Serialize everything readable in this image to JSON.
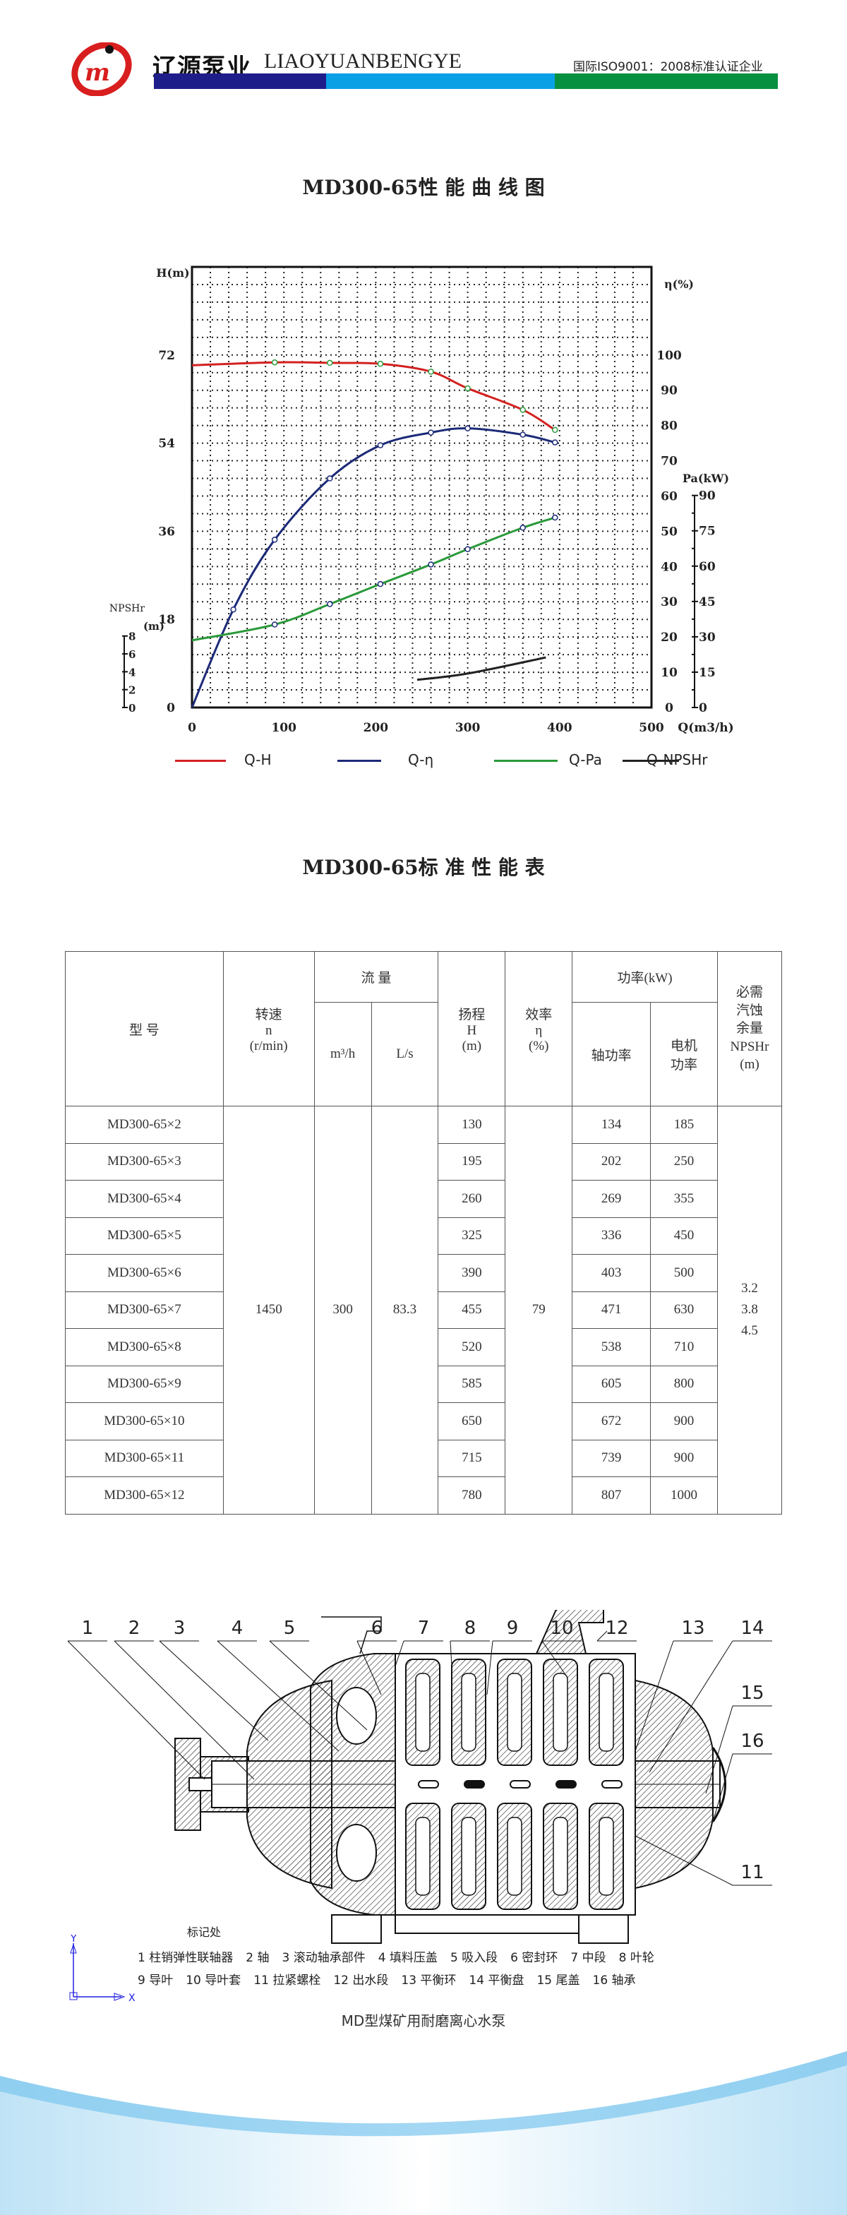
{
  "header": {
    "company_cn": "辽源泵业",
    "company_en": "LIAOYUANBENGYE",
    "certification": "国际ISO9001：2008标准认证企业",
    "logo_text": "JM",
    "bar_colors": [
      "#1e1e8a",
      "#0aa0e6",
      "#079040"
    ]
  },
  "chart_title": "MD300-65性 能 曲 线 图",
  "chart_data": {
    "type": "line",
    "grid": true,
    "x": {
      "label": "Q(m3/h)",
      "range": [
        0,
        500
      ],
      "ticks": [
        "0",
        "100",
        "200",
        "300",
        "400",
        "500"
      ]
    },
    "axes": {
      "H": {
        "label": "H(m)",
        "range": [
          0,
          90
        ],
        "ticks": [
          "0",
          "18",
          "36",
          "54",
          "72"
        ],
        "tick_values": [
          0,
          18,
          36,
          54,
          72
        ]
      },
      "eta": {
        "label": "η(%)",
        "range": [
          0,
          125
        ],
        "ticks": [
          "0",
          "10",
          "20",
          "30",
          "40",
          "50",
          "60",
          "70",
          "80",
          "90",
          "100"
        ],
        "tick_values": [
          0,
          10,
          20,
          30,
          40,
          50,
          60,
          70,
          80,
          90,
          100
        ]
      },
      "Pa": {
        "label": "Pa(kW)",
        "range": [
          0,
          187
        ],
        "ticks": [
          "0",
          "15",
          "30",
          "45",
          "60",
          "75",
          "90"
        ],
        "tick_values": [
          0,
          15,
          30,
          45,
          60,
          75,
          90
        ]
      },
      "NPSHr": {
        "label": "NPSHr",
        "unit": "(m)",
        "range": [
          0,
          49.3
        ],
        "ticks": [
          "0",
          "2",
          "4",
          "6",
          "8"
        ],
        "tick_values": [
          0,
          2,
          4,
          6,
          8
        ]
      }
    },
    "series": [
      {
        "name": "Q-H",
        "axis": "H",
        "color": "#d42020",
        "markers": true,
        "points": [
          [
            0,
            69.9
          ],
          [
            90,
            70.5
          ],
          [
            150,
            70.4
          ],
          [
            205,
            70.2
          ],
          [
            260,
            68.6
          ],
          [
            300,
            65.2
          ],
          [
            360,
            60.8
          ],
          [
            395,
            56.7
          ]
        ]
      },
      {
        "name": "Q-η",
        "axis": "eta",
        "color": "#1c2a78",
        "markers": true,
        "points": [
          [
            0,
            0
          ],
          [
            45,
            27.8
          ],
          [
            90,
            47.6
          ],
          [
            150,
            65
          ],
          [
            205,
            74.4
          ],
          [
            260,
            78
          ],
          [
            300,
            79.2
          ],
          [
            360,
            77.4
          ],
          [
            395,
            75.2
          ]
        ]
      },
      {
        "name": "Q-Pa",
        "axis": "Pa",
        "color": "#2a9a3a",
        "markers": true,
        "points": [
          [
            0,
            28.5
          ],
          [
            90,
            35.2
          ],
          [
            150,
            43.9
          ],
          [
            205,
            52.4
          ],
          [
            260,
            60.7
          ],
          [
            300,
            67.2
          ],
          [
            360,
            76.3
          ],
          [
            395,
            80.6
          ]
        ]
      },
      {
        "name": "Q-NPSHr",
        "axis": "NPSHr",
        "color": "#222222",
        "markers": false,
        "points": [
          [
            245,
            3.1
          ],
          [
            300,
            3.8
          ],
          [
            385,
            5.6
          ]
        ]
      }
    ]
  },
  "table_title": "MD300-65标 准 性 能 表",
  "table": {
    "headers": {
      "model": "型 号",
      "speed": "转速",
      "speed_sym": "n",
      "speed_unit": "(r/min)",
      "flow": "流 量",
      "flow_m3h": "m³/h",
      "flow_ls": "L/s",
      "head": "扬程",
      "head_sym": "H",
      "head_unit": "(m)",
      "eff": "效率",
      "eff_sym": "η",
      "eff_unit": "(%)",
      "power": "功率(kW)",
      "shaft_power": "轴功率",
      "motor_power_1": "电机",
      "motor_power_2": "功率",
      "npsh_1": "必需",
      "npsh_2": "汽蚀",
      "npsh_3": "余量",
      "npsh_4": "NPSHr",
      "npsh_5": "(m)"
    },
    "shared": {
      "speed": "1450",
      "flow_m3h": "300",
      "flow_ls": "83.3",
      "eff": "79",
      "npsh": [
        "3.2",
        "3.8",
        "4.5"
      ]
    },
    "rows": [
      {
        "model": "MD300-65×2",
        "head": "130",
        "shaft": "134",
        "motor": "185"
      },
      {
        "model": "MD300-65×3",
        "head": "195",
        "shaft": "202",
        "motor": "250"
      },
      {
        "model": "MD300-65×4",
        "head": "260",
        "shaft": "269",
        "motor": "355"
      },
      {
        "model": "MD300-65×5",
        "head": "325",
        "shaft": "336",
        "motor": "450"
      },
      {
        "model": "MD300-65×6",
        "head": "390",
        "shaft": "403",
        "motor": "500"
      },
      {
        "model": "MD300-65×7",
        "head": "455",
        "shaft": "471",
        "motor": "630"
      },
      {
        "model": "MD300-65×8",
        "head": "520",
        "shaft": "538",
        "motor": "710"
      },
      {
        "model": "MD300-65×9",
        "head": "585",
        "shaft": "605",
        "motor": "800"
      },
      {
        "model": "MD300-65×10",
        "head": "650",
        "shaft": "672",
        "motor": "900"
      },
      {
        "model": "MD300-65×11",
        "head": "715",
        "shaft": "739",
        "motor": "900"
      },
      {
        "model": "MD300-65×12",
        "head": "780",
        "shaft": "807",
        "motor": "1000"
      }
    ]
  },
  "diagram": {
    "callouts": [
      "1",
      "2",
      "3",
      "4",
      "5",
      "6",
      "7",
      "8",
      "9",
      "10",
      "12",
      "13",
      "14",
      "15",
      "16",
      "11"
    ],
    "mark_label": "标记处",
    "axis_x": "X",
    "axis_y": "Y",
    "parts_line1": [
      "1  柱销弹性联轴器",
      "2  轴",
      "3  滚动轴承部件",
      "4  填料压盖",
      "5  吸入段",
      "6  密封环",
      "7  中段",
      "8  叶轮"
    ],
    "parts_line2": [
      "9  导叶",
      "10  导叶套",
      "11  拉紧螺栓",
      "12  出水段",
      "13  平衡环",
      "14  平衡盘",
      "15  尾盖",
      "16 轴承"
    ],
    "caption": "MD型煤矿用耐磨离心水泵"
  }
}
